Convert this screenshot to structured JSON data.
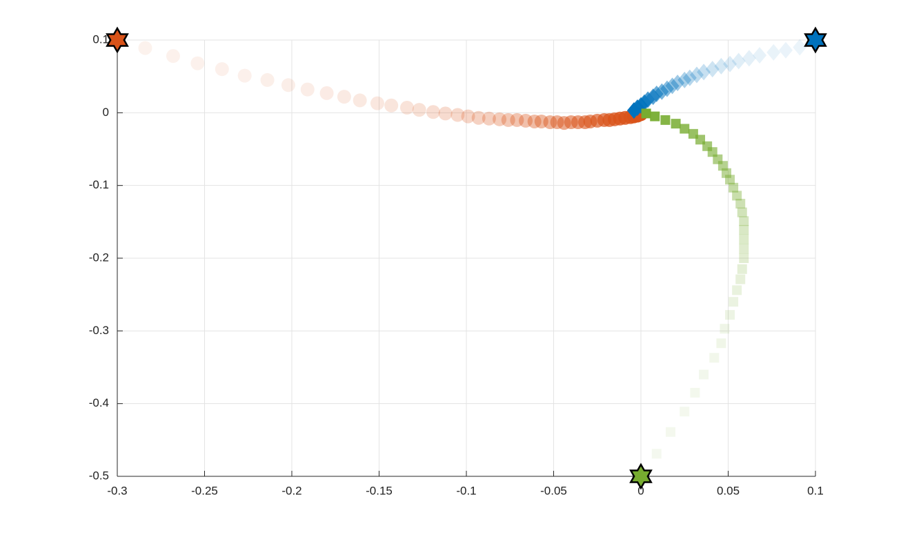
{
  "chart_data": {
    "type": "scatter",
    "xlim": [
      -0.3,
      0.1
    ],
    "ylim": [
      -0.5,
      0.1
    ],
    "xticks": [
      -0.3,
      -0.25,
      -0.2,
      -0.15,
      -0.1,
      -0.05,
      0,
      0.05,
      0.1
    ],
    "yticks": [
      -0.5,
      -0.4,
      -0.3,
      -0.2,
      -0.1,
      0,
      0.1
    ],
    "grid": true,
    "series": [
      {
        "marker": "circle",
        "color": "#D95319",
        "start_x": -0.3,
        "start_y": 0.1,
        "x": [
          -0.284,
          -0.268,
          -0.254,
          -0.24,
          -0.227,
          -0.214,
          -0.202,
          -0.191,
          -0.18,
          -0.17,
          -0.161,
          -0.151,
          -0.143,
          -0.134,
          -0.127,
          -0.119,
          -0.112,
          -0.105,
          -0.099,
          -0.093,
          -0.087,
          -0.081,
          -0.076,
          -0.071,
          -0.066,
          -0.061,
          -0.057,
          -0.052,
          -0.048,
          -0.044,
          -0.04,
          -0.036,
          -0.032,
          -0.029,
          -0.025,
          -0.021,
          -0.018,
          -0.015,
          -0.012,
          -0.009,
          -0.006,
          -0.004,
          -0.002,
          0.0
        ],
        "y": [
          0.089,
          0.078,
          0.068,
          0.06,
          0.051,
          0.045,
          0.038,
          0.032,
          0.027,
          0.022,
          0.017,
          0.013,
          0.01,
          0.007,
          0.004,
          0.001,
          -0.001,
          -0.003,
          -0.005,
          -0.007,
          -0.008,
          -0.009,
          -0.01,
          -0.01,
          -0.011,
          -0.012,
          -0.012,
          -0.013,
          -0.013,
          -0.014,
          -0.013,
          -0.013,
          -0.013,
          -0.012,
          -0.011,
          -0.01,
          -0.01,
          -0.009,
          -0.008,
          -0.007,
          -0.006,
          -0.005,
          -0.004,
          -0.002
        ]
      },
      {
        "marker": "diamond",
        "color": "#0072BD",
        "start_x": 0.1,
        "start_y": 0.1,
        "x": [
          0.091,
          0.083,
          0.076,
          0.068,
          0.062,
          0.056,
          0.051,
          0.046,
          0.041,
          0.036,
          0.032,
          0.028,
          0.025,
          0.021,
          0.018,
          0.015,
          0.012,
          0.009,
          0.007,
          0.004,
          0.002,
          0.0,
          -0.002,
          -0.004
        ],
        "y": [
          0.09,
          0.086,
          0.083,
          0.079,
          0.075,
          0.071,
          0.067,
          0.064,
          0.06,
          0.056,
          0.052,
          0.048,
          0.045,
          0.041,
          0.037,
          0.033,
          0.029,
          0.026,
          0.022,
          0.018,
          0.014,
          0.01,
          0.007,
          0.003
        ]
      },
      {
        "marker": "square",
        "color": "#77AC30",
        "start_x": 0,
        "start_y": -0.5,
        "x": [
          0.009,
          0.017,
          0.025,
          0.031,
          0.036,
          0.042,
          0.046,
          0.048,
          0.051,
          0.053,
          0.055,
          0.057,
          0.058,
          0.059,
          0.059,
          0.059,
          0.059,
          0.059,
          0.058,
          0.057,
          0.055,
          0.053,
          0.051,
          0.049,
          0.047,
          0.044,
          0.041,
          0.038,
          0.034,
          0.03,
          0.025,
          0.02,
          0.014,
          0.008,
          0.003
        ],
        "y": [
          -0.469,
          -0.439,
          -0.411,
          -0.385,
          -0.36,
          -0.337,
          -0.317,
          -0.297,
          -0.278,
          -0.26,
          -0.244,
          -0.229,
          -0.215,
          -0.2,
          -0.187,
          -0.174,
          -0.161,
          -0.149,
          -0.137,
          -0.125,
          -0.114,
          -0.103,
          -0.092,
          -0.083,
          -0.073,
          -0.064,
          -0.054,
          -0.046,
          -0.037,
          -0.029,
          -0.022,
          -0.015,
          -0.01,
          -0.005,
          -0.001
        ]
      }
    ]
  }
}
